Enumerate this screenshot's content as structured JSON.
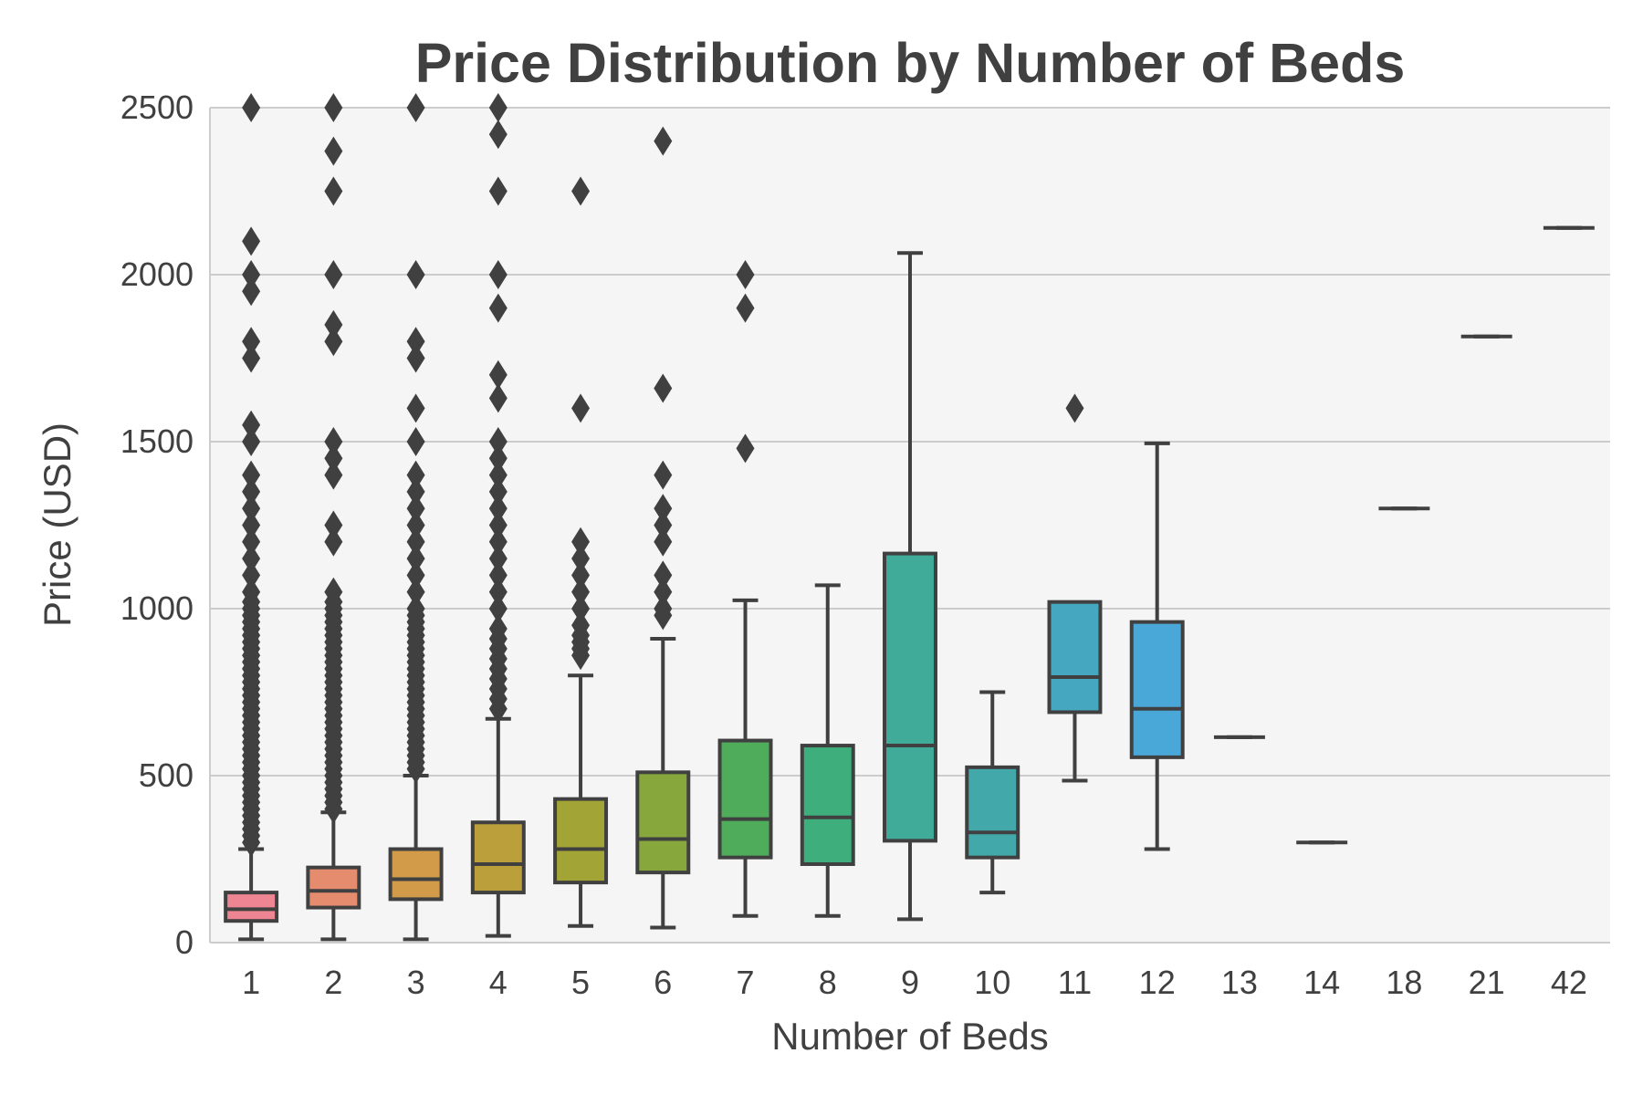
{
  "chart_data": {
    "type": "box",
    "title": "Price Distribution by Number of Beds",
    "xlabel": "Number of Beds",
    "ylabel": "Price (USD)",
    "ylim": [
      0,
      2500
    ],
    "yticks": [
      0,
      500,
      1000,
      1500,
      2000,
      2500
    ],
    "grid": "horizontal",
    "categories": [
      "1",
      "2",
      "3",
      "4",
      "5",
      "6",
      "7",
      "8",
      "9",
      "10",
      "11",
      "12",
      "13",
      "14",
      "18",
      "21",
      "42"
    ],
    "colors": [
      "#ee8592",
      "#e58c6e",
      "#d19b4a",
      "#ba9f3a",
      "#a3a436",
      "#87a73d",
      "#4fac5b",
      "#3eae7c",
      "#40ab98",
      "#42a8aa",
      "#45a8c0",
      "#4aa8d8",
      "#5f9ee8",
      "#878ff0",
      "#b080ef",
      "#d77ae6",
      "#ea76c8"
    ],
    "boxes": [
      {
        "category": "1",
        "whisker_low": 10,
        "q1": 65,
        "median": 100,
        "q3": 150,
        "whisker_high": 280,
        "outliers": [
          300,
          320,
          340,
          360,
          380,
          400,
          420,
          440,
          460,
          480,
          500,
          520,
          540,
          560,
          580,
          600,
          620,
          640,
          660,
          680,
          700,
          720,
          740,
          760,
          780,
          800,
          820,
          840,
          860,
          880,
          900,
          920,
          940,
          960,
          980,
          1000,
          1020,
          1050,
          1100,
          1150,
          1200,
          1250,
          1300,
          1350,
          1400,
          1500,
          1550,
          1750,
          1800,
          1950,
          2000,
          2100,
          2500
        ]
      },
      {
        "category": "2",
        "whisker_low": 10,
        "q1": 105,
        "median": 155,
        "q3": 225,
        "whisker_high": 390,
        "outliers": [
          400,
          420,
          440,
          460,
          480,
          500,
          520,
          540,
          560,
          580,
          600,
          620,
          640,
          660,
          680,
          700,
          720,
          740,
          760,
          780,
          800,
          820,
          840,
          860,
          880,
          900,
          920,
          940,
          960,
          980,
          1000,
          1020,
          1050,
          1200,
          1250,
          1400,
          1450,
          1500,
          1800,
          1850,
          2000,
          2250,
          2370,
          2500
        ]
      },
      {
        "category": "3",
        "whisker_low": 10,
        "q1": 130,
        "median": 190,
        "q3": 280,
        "whisker_high": 500,
        "outliers": [
          520,
          540,
          560,
          580,
          600,
          620,
          640,
          660,
          680,
          700,
          720,
          740,
          760,
          780,
          800,
          820,
          840,
          860,
          880,
          900,
          920,
          940,
          960,
          980,
          1000,
          1050,
          1100,
          1150,
          1200,
          1250,
          1300,
          1350,
          1400,
          1500,
          1600,
          1750,
          1800,
          2000,
          2500
        ]
      },
      {
        "category": "4",
        "whisker_low": 20,
        "q1": 150,
        "median": 235,
        "q3": 360,
        "whisker_high": 670,
        "outliers": [
          700,
          730,
          760,
          790,
          820,
          850,
          880,
          910,
          940,
          1000,
          1050,
          1100,
          1150,
          1200,
          1250,
          1300,
          1350,
          1400,
          1450,
          1500,
          1630,
          1700,
          1900,
          2000,
          2250,
          2420,
          2500
        ]
      },
      {
        "category": "5",
        "whisker_low": 50,
        "q1": 180,
        "median": 280,
        "q3": 430,
        "whisker_high": 800,
        "outliers": [
          860,
          880,
          900,
          920,
          950,
          1000,
          1050,
          1100,
          1150,
          1200,
          1600,
          2250
        ]
      },
      {
        "category": "6",
        "whisker_low": 45,
        "q1": 210,
        "median": 310,
        "q3": 510,
        "whisker_high": 910,
        "outliers": [
          980,
          1000,
          1050,
          1100,
          1200,
          1250,
          1300,
          1400,
          1660,
          2400
        ]
      },
      {
        "category": "7",
        "whisker_low": 80,
        "q1": 255,
        "median": 370,
        "q3": 605,
        "whisker_high": 1025,
        "outliers": [
          1480,
          1900,
          2000
        ]
      },
      {
        "category": "8",
        "whisker_low": 80,
        "q1": 235,
        "median": 375,
        "q3": 590,
        "whisker_high": 1070,
        "outliers": []
      },
      {
        "category": "9",
        "whisker_low": 70,
        "q1": 305,
        "median": 590,
        "q3": 1165,
        "whisker_high": 2065,
        "outliers": []
      },
      {
        "category": "10",
        "whisker_low": 150,
        "q1": 255,
        "median": 330,
        "q3": 525,
        "whisker_high": 750,
        "outliers": []
      },
      {
        "category": "11",
        "whisker_low": 485,
        "q1": 690,
        "median": 795,
        "q3": 1020,
        "whisker_high": 1020,
        "outliers": [
          1600
        ]
      },
      {
        "category": "12",
        "whisker_low": 280,
        "q1": 555,
        "median": 700,
        "q3": 960,
        "whisker_high": 1495,
        "outliers": []
      },
      {
        "category": "13",
        "whisker_low": 615,
        "q1": 615,
        "median": 615,
        "q3": 615,
        "whisker_high": 615,
        "outliers": []
      },
      {
        "category": "14",
        "whisker_low": 300,
        "q1": 300,
        "median": 300,
        "q3": 300,
        "whisker_high": 300,
        "outliers": []
      },
      {
        "category": "18",
        "whisker_low": 1300,
        "q1": 1300,
        "median": 1300,
        "q3": 1300,
        "whisker_high": 1300,
        "outliers": []
      },
      {
        "category": "21",
        "whisker_low": 1815,
        "q1": 1815,
        "median": 1815,
        "q3": 1815,
        "whisker_high": 1815,
        "outliers": []
      },
      {
        "category": "42",
        "whisker_low": 2140,
        "q1": 2140,
        "median": 2140,
        "q3": 2140,
        "whisker_high": 2140,
        "outliers": []
      }
    ]
  }
}
